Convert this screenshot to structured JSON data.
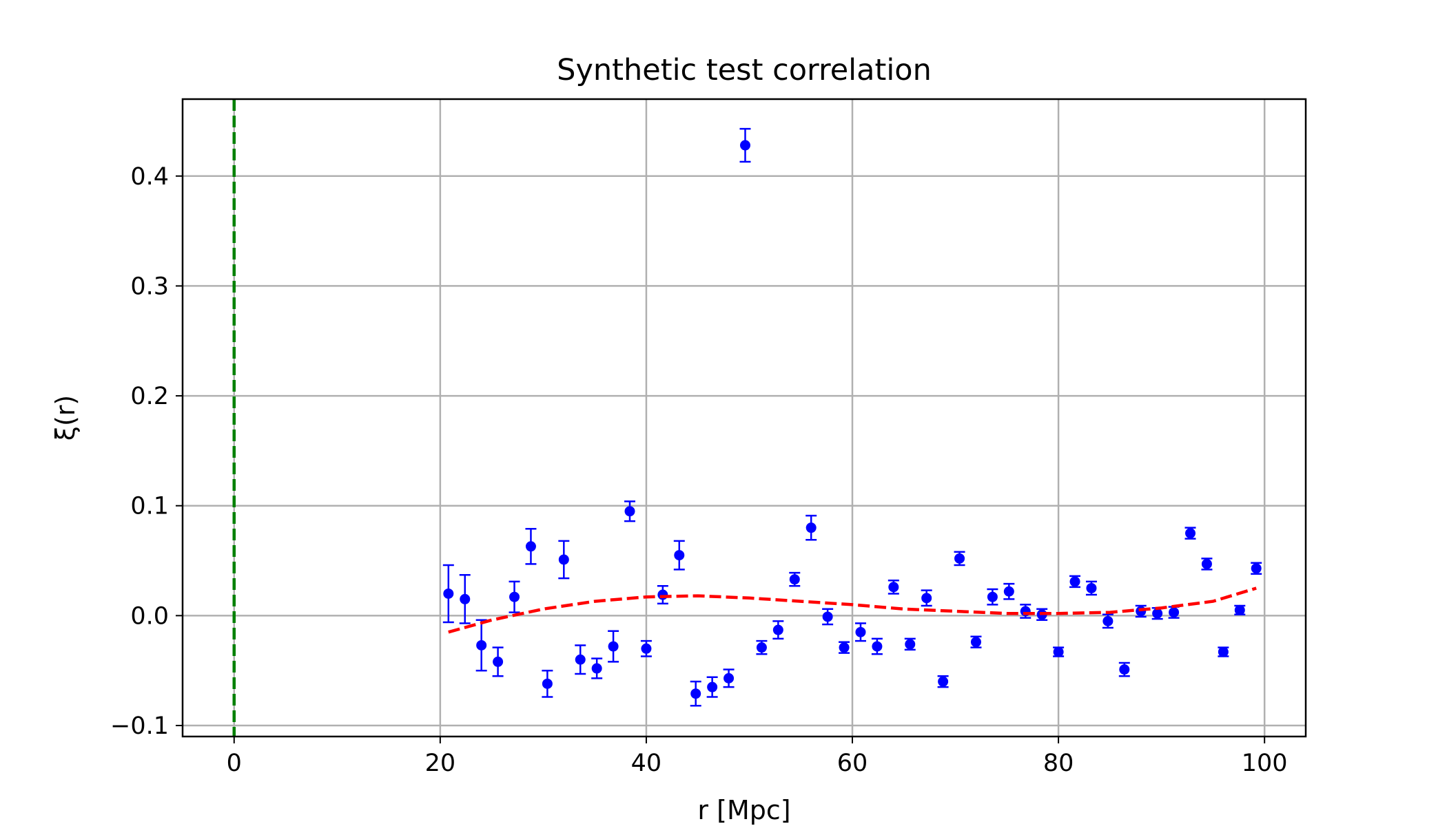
{
  "chart_data": {
    "type": "scatter",
    "title": "Synthetic test correlation",
    "xlabel": "r [Mpc]",
    "ylabel": "ξ(r)",
    "xlim": [
      -5,
      104
    ],
    "ylim": [
      -0.11,
      0.47
    ],
    "x_ticks": [
      0,
      20,
      40,
      60,
      80,
      100
    ],
    "x_tick_labels": [
      "0",
      "20",
      "40",
      "60",
      "80",
      "100"
    ],
    "y_ticks": [
      -0.1,
      0.0,
      0.1,
      0.2,
      0.3,
      0.4
    ],
    "y_tick_labels": [
      "−0.1",
      "0.0",
      "0.1",
      "0.2",
      "0.3",
      "0.4"
    ],
    "grid": true,
    "legend": "none",
    "colors": {
      "points": "#0000ff",
      "fit": "#ff0000",
      "vline": "#008000",
      "grid": "#b0b0b0"
    },
    "vertical_line": {
      "x": 0,
      "style": "dashed",
      "color": "#008000"
    },
    "points": [
      {
        "x": 20.8,
        "y": 0.02,
        "err": 0.026
      },
      {
        "x": 22.4,
        "y": 0.015,
        "err": 0.022
      },
      {
        "x": 24.0,
        "y": -0.027,
        "err": 0.023
      },
      {
        "x": 25.6,
        "y": -0.042,
        "err": 0.013
      },
      {
        "x": 27.2,
        "y": 0.017,
        "err": 0.014
      },
      {
        "x": 28.8,
        "y": 0.063,
        "err": 0.016
      },
      {
        "x": 30.4,
        "y": -0.062,
        "err": 0.012
      },
      {
        "x": 32.0,
        "y": 0.051,
        "err": 0.017
      },
      {
        "x": 33.6,
        "y": -0.04,
        "err": 0.013
      },
      {
        "x": 35.2,
        "y": -0.048,
        "err": 0.009
      },
      {
        "x": 36.8,
        "y": -0.028,
        "err": 0.014
      },
      {
        "x": 38.4,
        "y": 0.095,
        "err": 0.009
      },
      {
        "x": 40.0,
        "y": -0.03,
        "err": 0.007
      },
      {
        "x": 41.6,
        "y": 0.019,
        "err": 0.008
      },
      {
        "x": 43.2,
        "y": 0.055,
        "err": 0.013
      },
      {
        "x": 44.8,
        "y": -0.071,
        "err": 0.011
      },
      {
        "x": 46.4,
        "y": -0.065,
        "err": 0.009
      },
      {
        "x": 48.0,
        "y": -0.057,
        "err": 0.008
      },
      {
        "x": 49.6,
        "y": 0.428,
        "err": 0.015
      },
      {
        "x": 51.2,
        "y": -0.029,
        "err": 0.006
      },
      {
        "x": 52.8,
        "y": -0.013,
        "err": 0.008
      },
      {
        "x": 54.4,
        "y": 0.033,
        "err": 0.006
      },
      {
        "x": 56.0,
        "y": 0.08,
        "err": 0.011
      },
      {
        "x": 57.6,
        "y": -0.001,
        "err": 0.007
      },
      {
        "x": 59.2,
        "y": -0.029,
        "err": 0.005
      },
      {
        "x": 60.8,
        "y": -0.015,
        "err": 0.008
      },
      {
        "x": 62.4,
        "y": -0.028,
        "err": 0.007
      },
      {
        "x": 64.0,
        "y": 0.026,
        "err": 0.006
      },
      {
        "x": 65.6,
        "y": -0.026,
        "err": 0.005
      },
      {
        "x": 67.2,
        "y": 0.016,
        "err": 0.007
      },
      {
        "x": 68.8,
        "y": -0.06,
        "err": 0.005
      },
      {
        "x": 70.4,
        "y": 0.052,
        "err": 0.006
      },
      {
        "x": 72.0,
        "y": -0.024,
        "err": 0.005
      },
      {
        "x": 73.6,
        "y": 0.017,
        "err": 0.007
      },
      {
        "x": 75.2,
        "y": 0.022,
        "err": 0.007
      },
      {
        "x": 76.8,
        "y": 0.004,
        "err": 0.006
      },
      {
        "x": 78.4,
        "y": 0.001,
        "err": 0.005
      },
      {
        "x": 80.0,
        "y": -0.033,
        "err": 0.004
      },
      {
        "x": 81.6,
        "y": 0.031,
        "err": 0.005
      },
      {
        "x": 83.2,
        "y": 0.025,
        "err": 0.006
      },
      {
        "x": 84.8,
        "y": -0.005,
        "err": 0.006
      },
      {
        "x": 86.4,
        "y": -0.049,
        "err": 0.006
      },
      {
        "x": 88.0,
        "y": 0.004,
        "err": 0.005
      },
      {
        "x": 89.6,
        "y": 0.002,
        "err": 0.005
      },
      {
        "x": 91.2,
        "y": 0.003,
        "err": 0.005
      },
      {
        "x": 92.8,
        "y": 0.075,
        "err": 0.005
      },
      {
        "x": 94.4,
        "y": 0.047,
        "err": 0.005
      },
      {
        "x": 96.0,
        "y": -0.033,
        "err": 0.004
      },
      {
        "x": 97.6,
        "y": 0.005,
        "err": 0.004
      },
      {
        "x": 99.2,
        "y": 0.043,
        "err": 0.005
      }
    ],
    "fit_curve": {
      "style": "dashed",
      "x": [
        20.8,
        25,
        30,
        35,
        40,
        45,
        50,
        55,
        60,
        65,
        70,
        75,
        80,
        85,
        90,
        95,
        99.2
      ],
      "y": [
        -0.015,
        -0.004,
        0.006,
        0.013,
        0.017,
        0.018,
        0.016,
        0.013,
        0.01,
        0.006,
        0.004,
        0.002,
        0.002,
        0.003,
        0.007,
        0.013,
        0.025
      ]
    }
  }
}
